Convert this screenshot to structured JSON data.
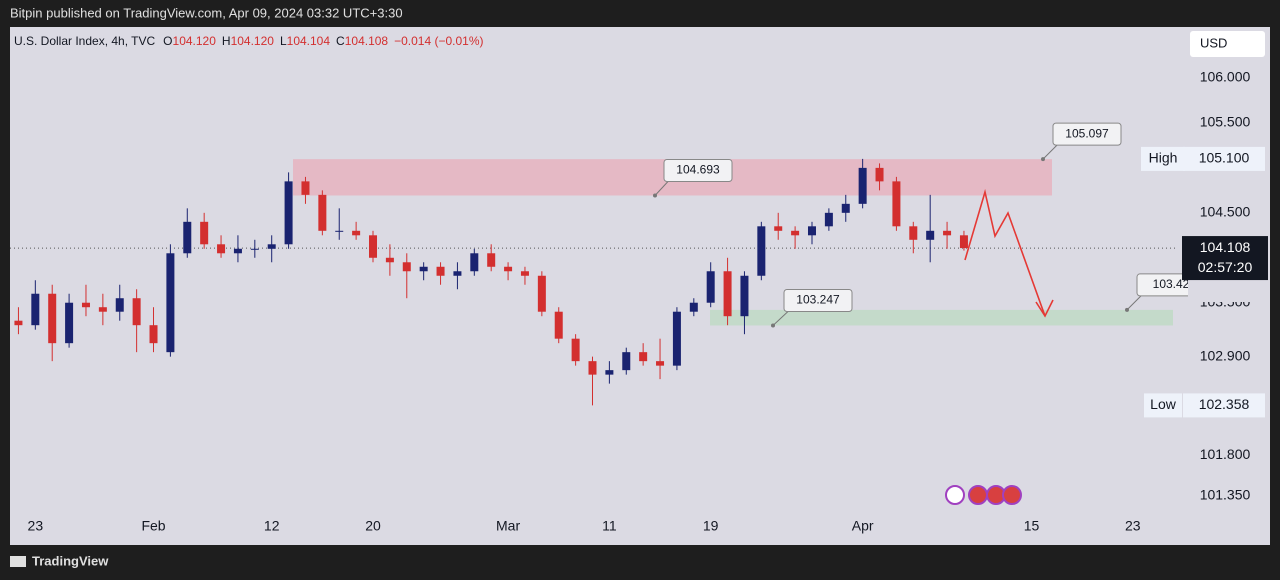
{
  "header": {
    "publisher": "Bitpin published on TradingView.com, Apr 09, 2024 03:32 UTC+3:30"
  },
  "footer": {
    "brand": "TradingView"
  },
  "chart_data": {
    "type": "candlestick",
    "legend": {
      "symbol": "U.S. Dollar Index, 4h, TVC",
      "o_label": "O",
      "open": "104.120",
      "h_label": "H",
      "high": "104.120",
      "l_label": "L",
      "low": "104.104",
      "c_label": "C",
      "close": "104.108",
      "change": "−0.014 (−0.01%)"
    },
    "currency": "USD",
    "categories": [
      null,
      "23",
      null,
      null,
      null,
      null,
      null,
      null,
      "Feb",
      null,
      null,
      null,
      null,
      null,
      null,
      "12",
      null,
      null,
      null,
      null,
      null,
      "20",
      null,
      null,
      null,
      null,
      null,
      null,
      null,
      "Mar",
      null,
      null,
      null,
      null,
      null,
      "11",
      null,
      null,
      null,
      null,
      null,
      "19",
      null,
      null,
      null,
      null,
      null,
      null,
      null,
      null,
      "Apr",
      null,
      null,
      null,
      null,
      null,
      null,
      null,
      null,
      null,
      "15",
      null,
      null,
      null,
      null,
      null,
      "23",
      null,
      null
    ],
    "open": [
      103.3,
      103.25,
      103.6,
      103.05,
      103.5,
      103.45,
      103.4,
      103.55,
      103.25,
      102.95,
      104.05,
      104.4,
      104.15,
      104.05,
      104.1,
      104.1,
      104.15,
      104.85,
      104.7,
      104.3,
      104.3,
      104.25,
      104.0,
      103.95,
      103.85,
      103.9,
      103.8,
      103.85,
      104.05,
      103.9,
      103.85,
      103.8,
      103.4,
      103.1,
      102.85,
      102.7,
      102.75,
      102.95,
      102.85,
      102.8,
      103.4,
      103.5,
      103.85,
      103.35,
      103.8,
      104.35,
      104.3,
      104.25,
      104.35,
      104.5,
      104.6,
      105.0,
      104.85,
      104.35,
      104.2,
      104.3,
      104.25,
      null,
      null,
      null,
      null,
      null,
      null,
      null,
      null,
      null,
      null,
      null,
      null
    ],
    "high": [
      103.45,
      103.75,
      103.7,
      103.6,
      103.7,
      103.6,
      103.7,
      103.65,
      103.45,
      104.15,
      104.55,
      104.5,
      104.25,
      104.25,
      104.2,
      104.25,
      104.95,
      104.9,
      104.75,
      104.55,
      104.4,
      104.3,
      104.15,
      104.05,
      103.95,
      103.95,
      103.95,
      104.1,
      104.15,
      103.95,
      103.9,
      103.85,
      103.45,
      103.15,
      102.9,
      102.85,
      103.0,
      103.05,
      103.1,
      103.45,
      103.55,
      103.95,
      104.0,
      103.85,
      104.4,
      104.5,
      104.35,
      104.4,
      104.55,
      104.7,
      105.1,
      105.05,
      104.9,
      104.4,
      104.7,
      104.4,
      104.3,
      null,
      null,
      null,
      null,
      null,
      null,
      null,
      null,
      null,
      null,
      null,
      null
    ],
    "low": [
      103.15,
      103.2,
      102.85,
      103.0,
      103.35,
      103.25,
      103.3,
      102.95,
      102.95,
      102.9,
      104.0,
      104.1,
      104.0,
      103.95,
      104.0,
      103.95,
      104.1,
      104.6,
      104.25,
      104.2,
      104.2,
      103.95,
      103.8,
      103.55,
      103.75,
      103.7,
      103.65,
      103.8,
      103.85,
      103.75,
      103.7,
      103.35,
      103.05,
      102.8,
      102.358,
      102.6,
      102.7,
      102.8,
      102.65,
      102.75,
      103.35,
      103.45,
      103.25,
      103.15,
      103.75,
      104.2,
      104.1,
      104.15,
      104.3,
      104.4,
      104.55,
      104.75,
      104.3,
      104.05,
      103.95,
      104.1,
      104.08,
      null,
      null,
      null,
      null,
      null,
      null,
      null,
      null,
      null,
      null,
      null,
      null
    ],
    "close": [
      103.25,
      103.6,
      103.05,
      103.5,
      103.45,
      103.4,
      103.55,
      103.25,
      103.05,
      104.05,
      104.4,
      104.15,
      104.05,
      104.1,
      104.1,
      104.15,
      104.85,
      104.7,
      104.3,
      104.3,
      104.25,
      104.0,
      103.95,
      103.85,
      103.9,
      103.8,
      103.85,
      104.05,
      103.9,
      103.85,
      103.8,
      103.4,
      103.1,
      102.85,
      102.7,
      102.75,
      102.95,
      102.85,
      102.8,
      103.4,
      103.5,
      103.85,
      103.35,
      103.8,
      104.35,
      104.3,
      104.25,
      104.35,
      104.5,
      104.6,
      105.0,
      104.85,
      104.35,
      104.2,
      104.3,
      104.25,
      104.108,
      null,
      null,
      null,
      null,
      null,
      null,
      null,
      null,
      null,
      null,
      null,
      null
    ],
    "up_color": "#1a2370",
    "down_color": "#d32f2f",
    "ylim": [
      101.172,
      106.556
    ],
    "yticks": [
      {
        "value": 106,
        "label": "106.000"
      },
      {
        "value": 105.5,
        "label": "105.500"
      },
      {
        "value": 104.5,
        "label": "104.500"
      },
      {
        "value": 103.5,
        "label": "103.500"
      },
      {
        "value": 102.9,
        "label": "102.900"
      },
      {
        "value": 101.8,
        "label": "101.800"
      },
      {
        "value": 101.35,
        "label": "101.350"
      }
    ],
    "high_marker": {
      "label": "High",
      "value": 105.1,
      "value_label": "105.100"
    },
    "low_marker": {
      "label": "Low",
      "value": 102.358,
      "value_label": "102.358"
    },
    "last_price": {
      "value": 104.108,
      "value_label": "104.108",
      "countdown": "02:57:20"
    },
    "zones": [
      {
        "low": 104.693,
        "high": 105.097,
        "color": "#e6b3bf"
      },
      {
        "low": 103.247,
        "high": 103.42,
        "color": "#bfd9c6"
      }
    ]
  }
}
